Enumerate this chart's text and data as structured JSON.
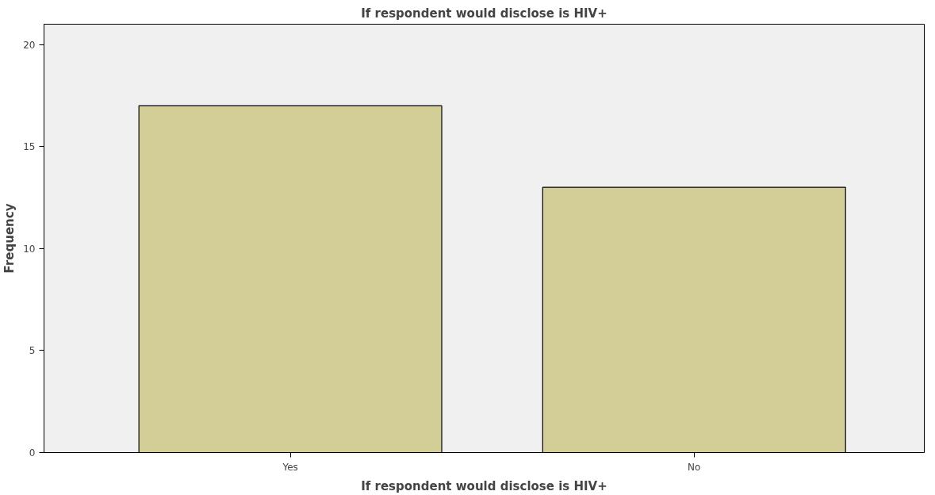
{
  "chart_data": {
    "type": "bar",
    "title": "If respondent would disclose is HIV+",
    "xlabel": "If respondent would disclose is HIV+",
    "ylabel": "Frequency",
    "categories": [
      "Yes",
      "No"
    ],
    "values": [
      17,
      13
    ],
    "color": "#d3ce97",
    "ylim": [
      0,
      21
    ],
    "yticks": [
      0,
      5,
      10,
      15,
      20
    ],
    "grid": false
  }
}
